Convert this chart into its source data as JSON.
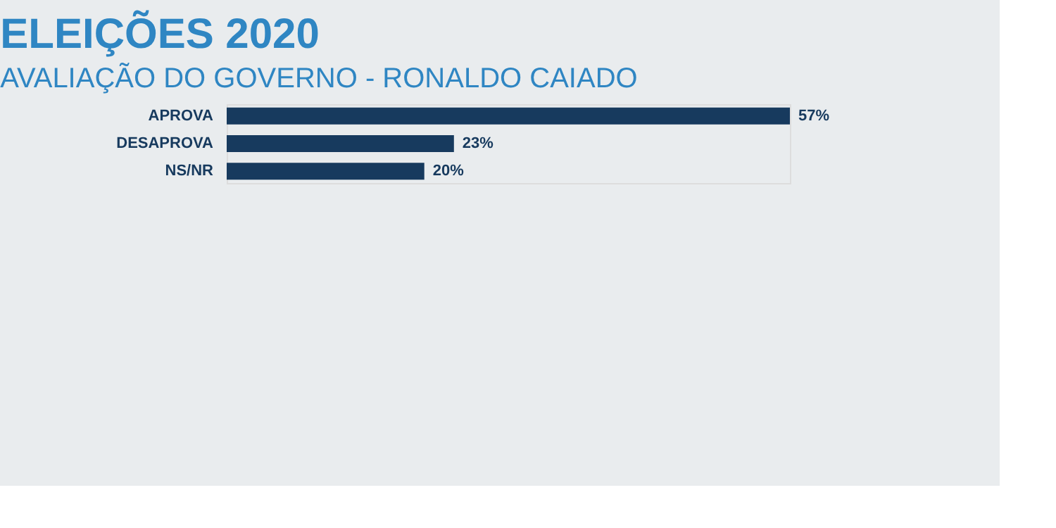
{
  "chart_data": {
    "type": "bar",
    "orientation": "horizontal",
    "title": "ELEIÇÕES 2020",
    "subtitle": "AVALIAÇÃO DO GOVERNO - RONALDO CAIADO",
    "categories": [
      "APROVA",
      "DESAPROVA",
      "NS/NR"
    ],
    "values": [
      57,
      23,
      20
    ],
    "value_labels": [
      "57%",
      "23%",
      "20%"
    ],
    "color": "#173a5e",
    "xlim": [
      0,
      57
    ],
    "tick_labels": "y"
  }
}
